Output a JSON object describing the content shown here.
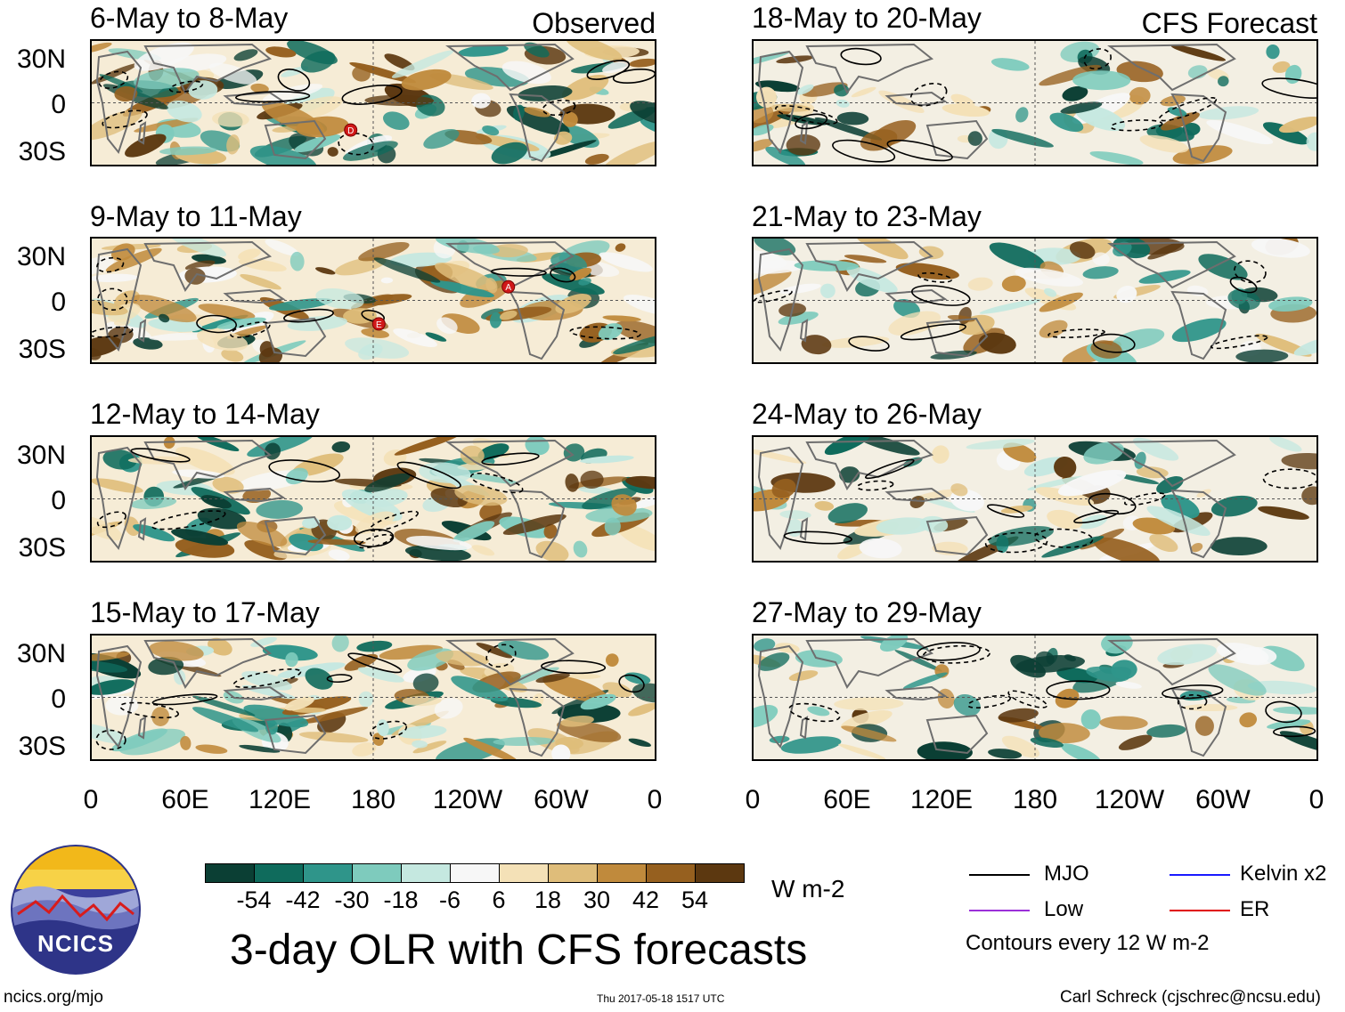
{
  "figure": {
    "title": "3-day OLR with CFS forecasts",
    "units": "W m-2",
    "observed_tag": "Observed",
    "forecast_tag": "CFS Forecast",
    "site": "ncics.org/mjo",
    "timestamp": "Thu 2017-05-18 1517 UTC",
    "author": "Carl Schreck (cjschrec@ncsu.edu)",
    "logo_text": "NCICS",
    "contour_note": "Contours every 12 W m-2"
  },
  "legend": {
    "mjo": "MJO",
    "low": "Low",
    "kelvin": "Kelvin x2",
    "er": "ER",
    "colors": {
      "mjo": "#000000",
      "low": "#9b30d9",
      "kelvin": "#1a1aff",
      "er": "#e00000"
    }
  },
  "chart_data": {
    "type": "heatmap",
    "title": "3-day OLR with CFS forecasts",
    "colorbar": {
      "ticks": [
        "-54",
        "-42",
        "-30",
        "-18",
        "-6",
        "6",
        "18",
        "30",
        "42",
        "54"
      ],
      "colors": [
        "#0b3f34",
        "#0f6b5c",
        "#2f958a",
        "#7ecbbd",
        "#c5e8e0",
        "#f7f7f7",
        "#f4e1b7",
        "#dfbd7a",
        "#c08a3c",
        "#96601f",
        "#5c3810"
      ]
    },
    "lat_labels": [
      "30N",
      "0",
      "30S"
    ],
    "lon_labels": [
      "0",
      "60E",
      "120E",
      "180",
      "120W",
      "60W",
      "0"
    ],
    "panels": [
      {
        "period": "6-May to 8-May",
        "source": "Observed",
        "storms": [
          "D"
        ]
      },
      {
        "period": "9-May to 11-May",
        "source": "Observed",
        "storms": [
          "A",
          "E"
        ]
      },
      {
        "period": "12-May to 14-May",
        "source": "Observed",
        "storms": []
      },
      {
        "period": "15-May to 17-May",
        "source": "Observed",
        "storms": []
      },
      {
        "period": "18-May to 20-May",
        "source": "CFS Forecast",
        "storms": []
      },
      {
        "period": "21-May to 23-May",
        "source": "CFS Forecast",
        "storms": []
      },
      {
        "period": "24-May to 26-May",
        "source": "CFS Forecast",
        "storms": []
      },
      {
        "period": "27-May to 29-May",
        "source": "CFS Forecast",
        "storms": []
      }
    ]
  }
}
